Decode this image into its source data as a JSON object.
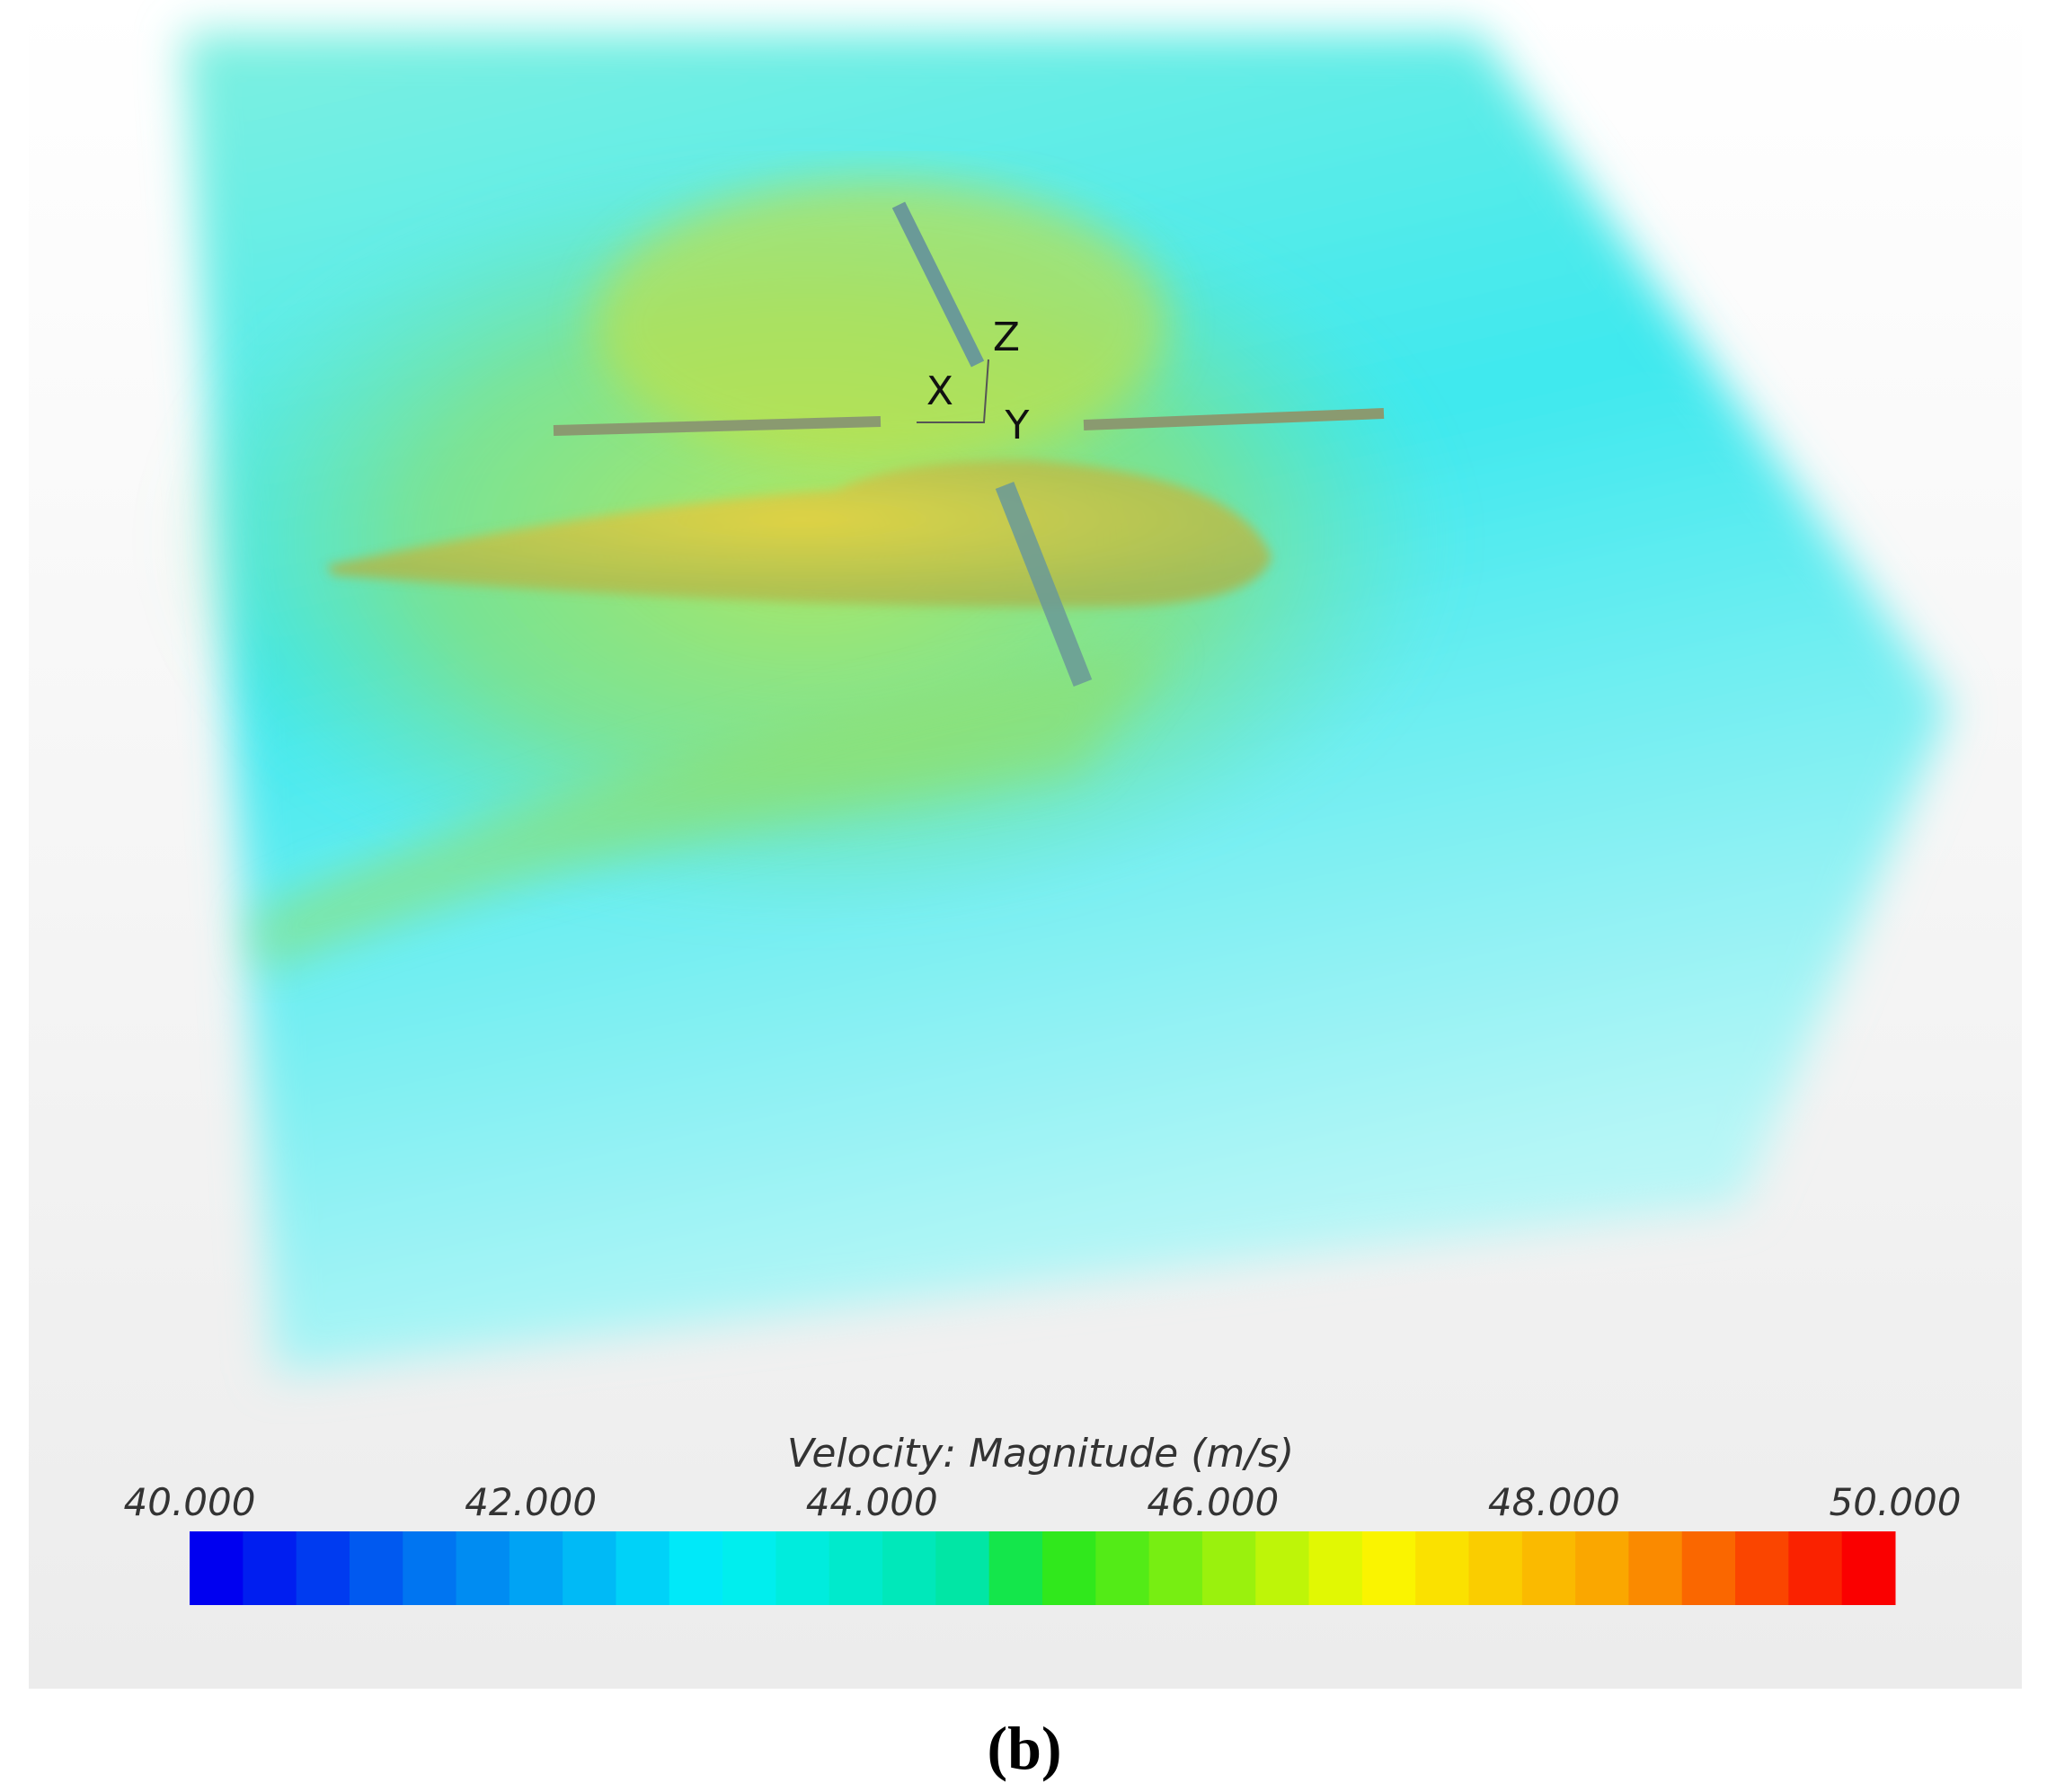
{
  "axes_triad": {
    "x": "X",
    "y": "Y",
    "z": "Z"
  },
  "colorbar": {
    "title": "Velocity: Magnitude (m/s)",
    "ticks": [
      "40.000",
      "42.000",
      "44.000",
      "46.000",
      "48.000",
      "50.000"
    ]
  },
  "caption": "(b)"
}
